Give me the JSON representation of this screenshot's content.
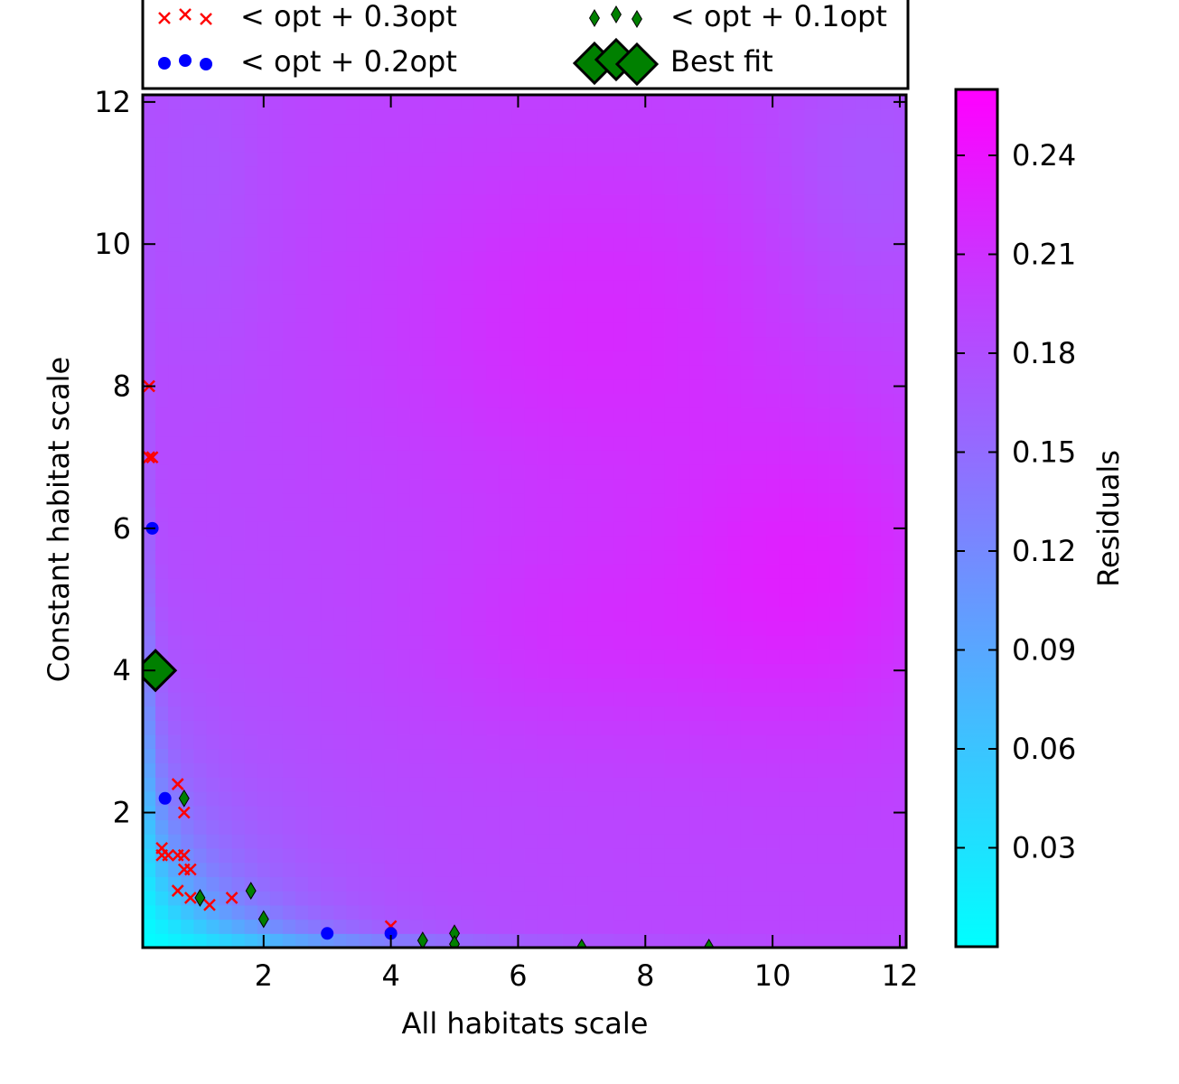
{
  "chart_data": {
    "type": "heatmap",
    "xlabel": "All habitats scale",
    "ylabel": "Constant habitat scale",
    "xlim": [
      0.1,
      12.1
    ],
    "ylim": [
      0.1,
      12.1
    ],
    "x_ticks": [
      2,
      4,
      6,
      8,
      10,
      12
    ],
    "y_ticks": [
      2,
      4,
      6,
      8,
      10,
      12
    ],
    "colorbar": {
      "label": "Residuals",
      "range": [
        0.0,
        0.26
      ],
      "ticks": [
        "0.03",
        "0.06",
        "0.09",
        "0.12",
        "0.15",
        "0.18",
        "0.21",
        "0.24"
      ],
      "colormap": "cool",
      "color_low": "#00ffff",
      "color_high": "#ff00ff"
    },
    "legend": {
      "placement": "top",
      "entries": [
        {
          "label": "< opt + 0.3opt",
          "marker": "x",
          "color": "#ff0000"
        },
        {
          "label": "< opt + 0.1opt",
          "marker": "thin-diamond",
          "color": "#008000"
        },
        {
          "label": "< opt + 0.2opt",
          "marker": "circle",
          "color": "#0000ff"
        },
        {
          "label": "Best fit",
          "marker": "diamond",
          "color": "#008000"
        }
      ]
    },
    "series": [
      {
        "name": "< opt + 0.3opt",
        "marker": "x",
        "color": "#ff0000",
        "points": [
          [
            0.2,
            8.0
          ],
          [
            0.2,
            7.0
          ],
          [
            0.25,
            7.0
          ],
          [
            0.65,
            2.4
          ],
          [
            0.75,
            2.0
          ],
          [
            0.4,
            1.5
          ],
          [
            0.4,
            1.4
          ],
          [
            0.5,
            1.4
          ],
          [
            0.65,
            1.4
          ],
          [
            0.75,
            1.4
          ],
          [
            0.75,
            1.2
          ],
          [
            0.85,
            1.2
          ],
          [
            0.65,
            0.9
          ],
          [
            0.85,
            0.8
          ],
          [
            1.15,
            0.7
          ],
          [
            1.5,
            0.8
          ],
          [
            4.0,
            0.4
          ]
        ]
      },
      {
        "name": "< opt + 0.2opt",
        "marker": "circle",
        "color": "#0000ff",
        "points": [
          [
            0.25,
            6.0
          ],
          [
            0.45,
            2.2
          ],
          [
            3.0,
            0.3
          ],
          [
            4.0,
            0.3
          ]
        ]
      },
      {
        "name": "< opt + 0.1opt",
        "marker": "thin-diamond",
        "color": "#008000",
        "points": [
          [
            0.75,
            2.2
          ],
          [
            1.0,
            0.8
          ],
          [
            1.8,
            0.9
          ],
          [
            2.0,
            0.5
          ],
          [
            4.5,
            0.2
          ],
          [
            5.0,
            0.3
          ],
          [
            5.0,
            0.15
          ],
          [
            7.0,
            0.1
          ],
          [
            9.0,
            0.1
          ]
        ]
      },
      {
        "name": "Best fit",
        "marker": "diamond",
        "color": "#008000",
        "points": [
          [
            0.3,
            4.0
          ]
        ]
      }
    ]
  }
}
